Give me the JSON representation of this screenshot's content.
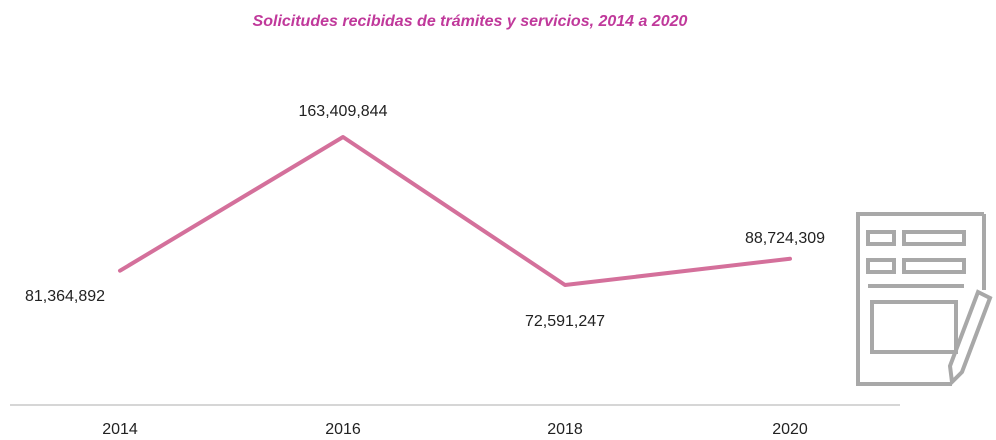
{
  "chart_data": {
    "type": "line",
    "title": "Solicitudes recibidas de trámites y servicios, 2014 a 2020",
    "categories": [
      "2014",
      "2016",
      "2018",
      "2020"
    ],
    "series": [
      {
        "name": null,
        "color": "#d4709b",
        "values": [
          81364892,
          163409844,
          72591247,
          88724309
        ],
        "value_labels": [
          "81,364,892",
          "163,409,844",
          "72,591,247",
          "88,724,309"
        ]
      }
    ]
  }
}
